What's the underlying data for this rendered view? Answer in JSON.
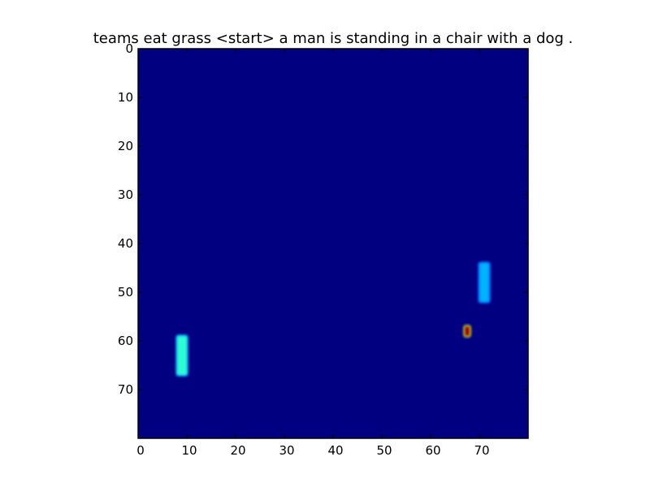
{
  "chart_data": {
    "type": "heatmap",
    "title": "teams eat grass <start> a man is standing in a chair with a dog .",
    "xlabel": "",
    "ylabel": "",
    "grid": false,
    "colormap": "jet",
    "grid_size": [
      80,
      80
    ],
    "xlim": [
      0,
      80
    ],
    "ylim": [
      80,
      0
    ],
    "x_ticks": [
      0,
      10,
      20,
      30,
      40,
      50,
      60,
      70
    ],
    "y_ticks": [
      0,
      10,
      20,
      30,
      40,
      50,
      60,
      70
    ],
    "background_value": 0.0,
    "hotspots": [
      {
        "x": [
          8,
          10
        ],
        "y": [
          59,
          67
        ],
        "value": 0.42
      },
      {
        "x": [
          70,
          72
        ],
        "y": [
          44,
          52
        ],
        "value": 0.3
      },
      {
        "x": [
          67,
          68
        ],
        "y": [
          57,
          59
        ],
        "value": 0.98
      }
    ]
  }
}
